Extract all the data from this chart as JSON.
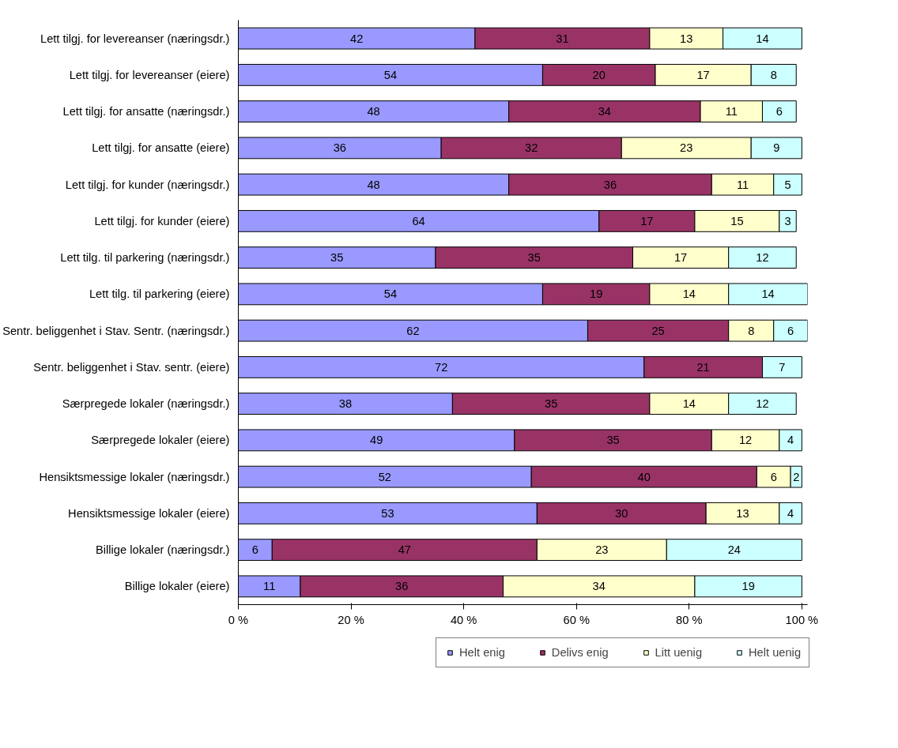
{
  "chart_data": {
    "type": "bar",
    "orientation": "horizontal",
    "stacked": true,
    "data_labels": true,
    "legend": "bottom",
    "categories": [
      "Lett tilgj. for levereanser (næringsdr.)",
      "Lett tilgj. for levereanser (eiere)",
      "Lett tilgj. for ansatte (næringsdr.)",
      "Lett tilgj. for ansatte (eiere)",
      "Lett tilgj. for kunder (næringsdr.)",
      "Lett tilgj. for kunder (eiere)",
      "Lett tilg. til parkering (næringsdr.)",
      "Lett tilg. til parkering (eiere)",
      "Sentr. beliggenhet i Stav. Sentr. (næringsdr.)",
      "Sentr. beliggenhet i Stav. sentr. (eiere)",
      "Særpregede lokaler (næringsdr.)",
      "Særpregede lokaler (eiere)",
      "Hensiktsmessige lokaler (næringsdr.)",
      "Hensiktsmessige lokaler (eiere)",
      "Billige lokaler (næringsdr.)",
      "Billige lokaler (eiere)"
    ],
    "xlim": [
      0,
      101
    ],
    "xticks": [
      {
        "value": 0,
        "label": "0 %"
      },
      {
        "value": 20,
        "label": "20 %"
      },
      {
        "value": 40,
        "label": "40 %"
      },
      {
        "value": 60,
        "label": "60 %"
      },
      {
        "value": 80,
        "label": "80 %"
      },
      {
        "value": 100,
        "label": "100 %"
      }
    ],
    "series": [
      {
        "name": "Helt enig",
        "color": "#9999ff",
        "values": [
          42,
          54,
          48,
          36,
          48,
          64,
          35,
          54,
          62,
          72,
          38,
          49,
          52,
          53,
          6,
          11
        ]
      },
      {
        "name": "Delivs enig",
        "color": "#993366",
        "values": [
          31,
          20,
          34,
          32,
          36,
          17,
          35,
          19,
          25,
          21,
          35,
          35,
          40,
          30,
          47,
          36
        ]
      },
      {
        "name": "Litt uenig",
        "color": "#ffffcc",
        "values": [
          13,
          17,
          11,
          23,
          11,
          15,
          17,
          14,
          8,
          null,
          14,
          12,
          6,
          13,
          23,
          34
        ]
      },
      {
        "name": "Helt uenig",
        "color": "#ccffff",
        "values": [
          14,
          8,
          6,
          9,
          5,
          3,
          12,
          14,
          6,
          7,
          12,
          4,
          2,
          4,
          24,
          19
        ]
      }
    ]
  }
}
